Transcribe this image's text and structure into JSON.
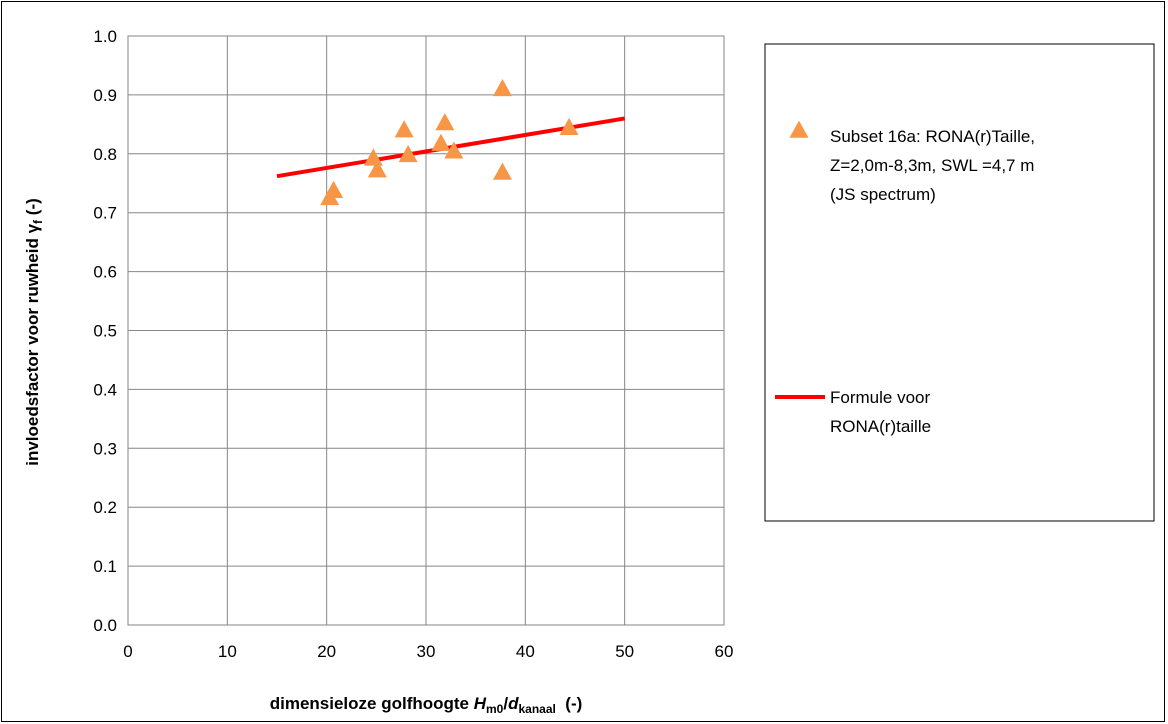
{
  "chart_data": {
    "type": "scatter",
    "title": "",
    "xlabel": {
      "main": "dimensieloze golfhoogte ",
      "h": "H",
      "h_sub": "m0",
      "slash": "/",
      "d": "d",
      "d_sub": "kanaal",
      "unit": "  (-)"
    },
    "ylabel": {
      "main": "invloedsfactor voor ruwheid ",
      "gamma": "γ",
      "gamma_sub": "f",
      "unit": " (-)"
    },
    "xlim": [
      0,
      60
    ],
    "ylim": [
      0.0,
      1.0
    ],
    "xticks": [
      0,
      10,
      20,
      30,
      40,
      50,
      60
    ],
    "yticks": [
      "0.0",
      "0.1",
      "0.2",
      "0.3",
      "0.4",
      "0.5",
      "0.6",
      "0.7",
      "0.8",
      "0.9",
      "1.0"
    ],
    "grid": true,
    "legend_position": "right",
    "series": [
      {
        "name_lines": [
          "Subset 16a: RONA(r)Taille,",
          "Z=2,0m-8,3m, SWL =4,7 m",
          "(JS spectrum)"
        ],
        "marker": "triangle",
        "color": "#F79646",
        "points": [
          {
            "x": 20.3,
            "y": 0.726
          },
          {
            "x": 20.7,
            "y": 0.738
          },
          {
            "x": 24.7,
            "y": 0.793
          },
          {
            "x": 25.1,
            "y": 0.773
          },
          {
            "x": 27.8,
            "y": 0.841
          },
          {
            "x": 28.2,
            "y": 0.799
          },
          {
            "x": 31.5,
            "y": 0.818
          },
          {
            "x": 31.9,
            "y": 0.853
          },
          {
            "x": 32.8,
            "y": 0.805
          },
          {
            "x": 37.7,
            "y": 0.769
          },
          {
            "x": 37.7,
            "y": 0.911
          },
          {
            "x": 44.4,
            "y": 0.845
          }
        ]
      },
      {
        "name_lines": [
          "Formule voor",
          "RONA(r)taille"
        ],
        "marker": "line",
        "color": "#FF0000",
        "points": [
          {
            "x": 15,
            "y": 0.762
          },
          {
            "x": 50,
            "y": 0.86
          }
        ]
      }
    ]
  }
}
